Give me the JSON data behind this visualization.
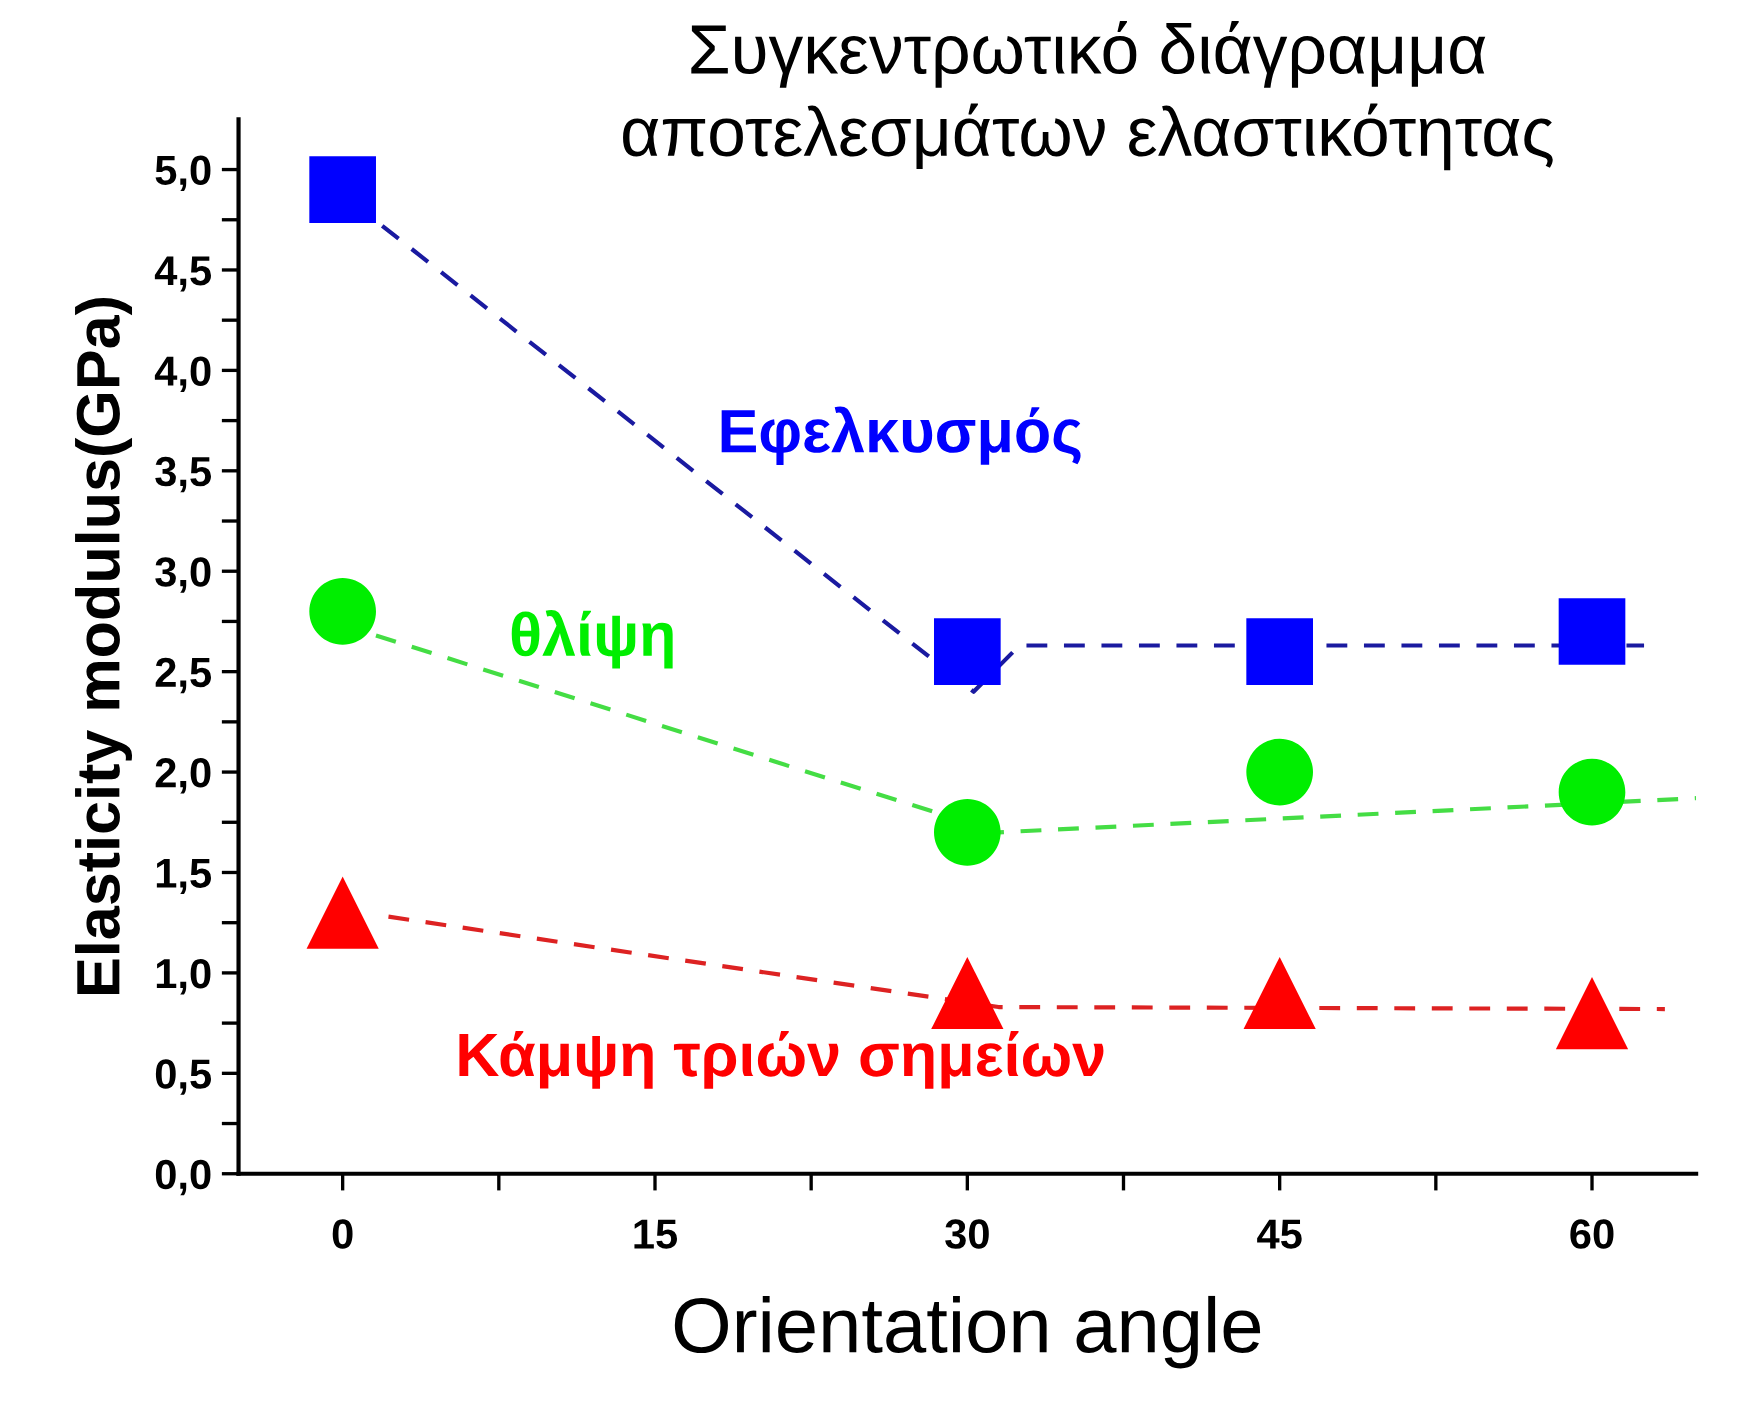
{
  "chart_data": {
    "type": "scatter",
    "title": "Συγκεντρωτικό διάγραμμα\nαποτελεσμάτων ελαστικότητας",
    "xlabel": "Orientation angle",
    "ylabel": "Elasticity modulus(GPa)",
    "x": [
      0,
      30,
      45,
      60
    ],
    "series": [
      {
        "name": "Εφελκυσμός",
        "color": "#0000ff",
        "marker": "square",
        "values": [
          4.9,
          2.6,
          2.6,
          2.7
        ]
      },
      {
        "name": "θλίψη",
        "color": "#00ee00",
        "marker": "circle",
        "values": [
          2.8,
          1.7,
          2.0,
          1.9
        ]
      },
      {
        "name": "Κάμψη τριών σημείων",
        "color": "#ff0000",
        "marker": "triangle",
        "values": [
          1.3,
          0.9,
          0.9,
          0.8
        ]
      },
      {
        "type": "line",
        "color": "#1a1aa0",
        "line_style": "dashed",
        "x": [
          1.9,
          30.3,
          32.5,
          62.5
        ],
        "values": [
          4.72,
          2.4,
          2.63,
          2.63
        ]
      },
      {
        "type": "line",
        "color": "#44dd44",
        "line_style": "dashed",
        "x": [
          1.6,
          31.5,
          65
        ],
        "values": [
          2.68,
          1.7,
          1.87
        ]
      },
      {
        "type": "line",
        "color": "#dd2222",
        "line_style": "dashed",
        "x": [
          2.2,
          31.5,
          63.5
        ],
        "values": [
          1.28,
          0.83,
          0.82
        ]
      }
    ],
    "xlim": [
      -5,
      65
    ],
    "xticks": [
      0,
      {
        "value": 7.5,
        "label": null
      },
      15,
      {
        "value": 22.5,
        "label": null
      },
      30,
      {
        "value": 37.5,
        "label": null
      },
      45,
      {
        "value": 52.5,
        "label": null
      },
      60
    ],
    "ylim": [
      0,
      5.25
    ],
    "yticks": [
      {
        "value": 0,
        "label": "0,0"
      },
      {
        "value": 0.25,
        "label": null
      },
      {
        "value": 0.5,
        "label": "0,5"
      },
      {
        "value": 0.75,
        "label": null
      },
      {
        "value": 1.0,
        "label": "1,0"
      },
      {
        "value": 1.25,
        "label": null
      },
      {
        "value": 1.5,
        "label": "1,5"
      },
      {
        "value": 1.75,
        "label": null
      },
      {
        "value": 2.0,
        "label": "2,0"
      },
      {
        "value": 2.25,
        "label": null
      },
      {
        "value": 2.5,
        "label": "2,5"
      },
      {
        "value": 2.75,
        "label": null
      },
      {
        "value": 3.0,
        "label": "3,0"
      },
      {
        "value": 3.25,
        "label": null
      },
      {
        "value": 3.5,
        "label": "3,5"
      },
      {
        "value": 3.75,
        "label": null
      },
      {
        "value": 4.0,
        "label": "4,0"
      },
      {
        "value": 4.25,
        "label": null
      },
      {
        "value": 4.5,
        "label": "4,5"
      },
      {
        "value": 4.75,
        "label": null
      },
      {
        "value": 5.0,
        "label": "5,0"
      }
    ],
    "grid": false,
    "legend": false
  }
}
